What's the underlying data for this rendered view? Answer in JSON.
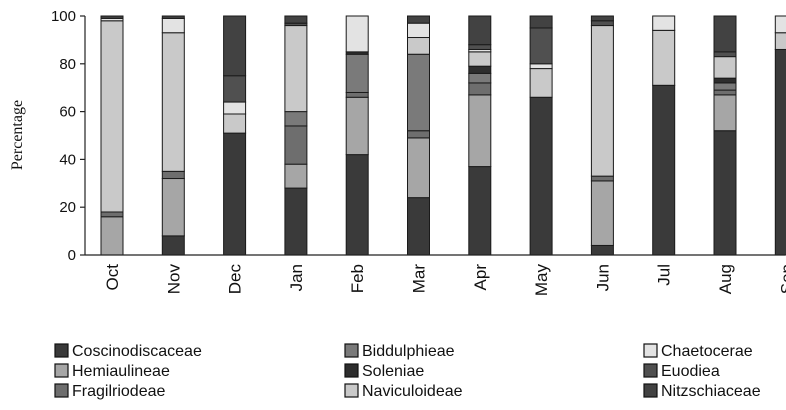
{
  "chart_data": {
    "type": "bar",
    "stacked": true,
    "title": "",
    "xlabel": "",
    "ylabel": "Percentage",
    "ylim": [
      0,
      100
    ],
    "yticks": [
      0,
      20,
      40,
      60,
      80,
      100
    ],
    "grid": false,
    "legend_position": "bottom",
    "categories": [
      "Oct",
      "Nov",
      "Dec",
      "Jan",
      "Feb",
      "Mar",
      "Apr",
      "May",
      "Jun",
      "Jul",
      "Aug",
      "Sep"
    ],
    "series": [
      {
        "name": "Coscinodiscaceae",
        "color": "#3a3a3a",
        "values": [
          0,
          8,
          51,
          28,
          42,
          24,
          37,
          66,
          4,
          71,
          52,
          86
        ]
      },
      {
        "name": "Hemiaulineae",
        "color": "#a6a6a6",
        "values": [
          16,
          24,
          0,
          10,
          24,
          25,
          30,
          0,
          27,
          0,
          15,
          0
        ]
      },
      {
        "name": "Fragilriodeae",
        "color": "#6e6e6e",
        "values": [
          2,
          3,
          0,
          16,
          2,
          3,
          5,
          0,
          2,
          0,
          2,
          0
        ]
      },
      {
        "name": "Biddulphieae",
        "color": "#7a7a7a",
        "values": [
          0,
          0,
          0,
          6,
          16,
          32,
          4,
          0,
          0,
          0,
          3,
          0
        ]
      },
      {
        "name": "Soleniae",
        "color": "#2e2e2e",
        "values": [
          0,
          0,
          0,
          0,
          1,
          0,
          3,
          0,
          0,
          0,
          2,
          0
        ]
      },
      {
        "name": "Naviculoideae",
        "color": "#c9c9c9",
        "values": [
          80,
          58,
          8,
          36,
          0,
          7,
          6,
          12,
          63,
          23,
          9,
          7
        ]
      },
      {
        "name": "Chaetocerae",
        "color": "#e3e3e3",
        "values": [
          1,
          6,
          5,
          0,
          15,
          6,
          1,
          2,
          0,
          6,
          0,
          7
        ]
      },
      {
        "name": "Euodiea",
        "color": "#505050",
        "values": [
          0,
          0,
          11,
          1,
          0,
          0,
          2,
          15,
          2,
          0,
          2,
          0
        ]
      },
      {
        "name": "Nitzschiaceae",
        "color": "#424242",
        "values": [
          1,
          1,
          25,
          3,
          0,
          3,
          12,
          5,
          2,
          0,
          15,
          0
        ]
      }
    ]
  }
}
